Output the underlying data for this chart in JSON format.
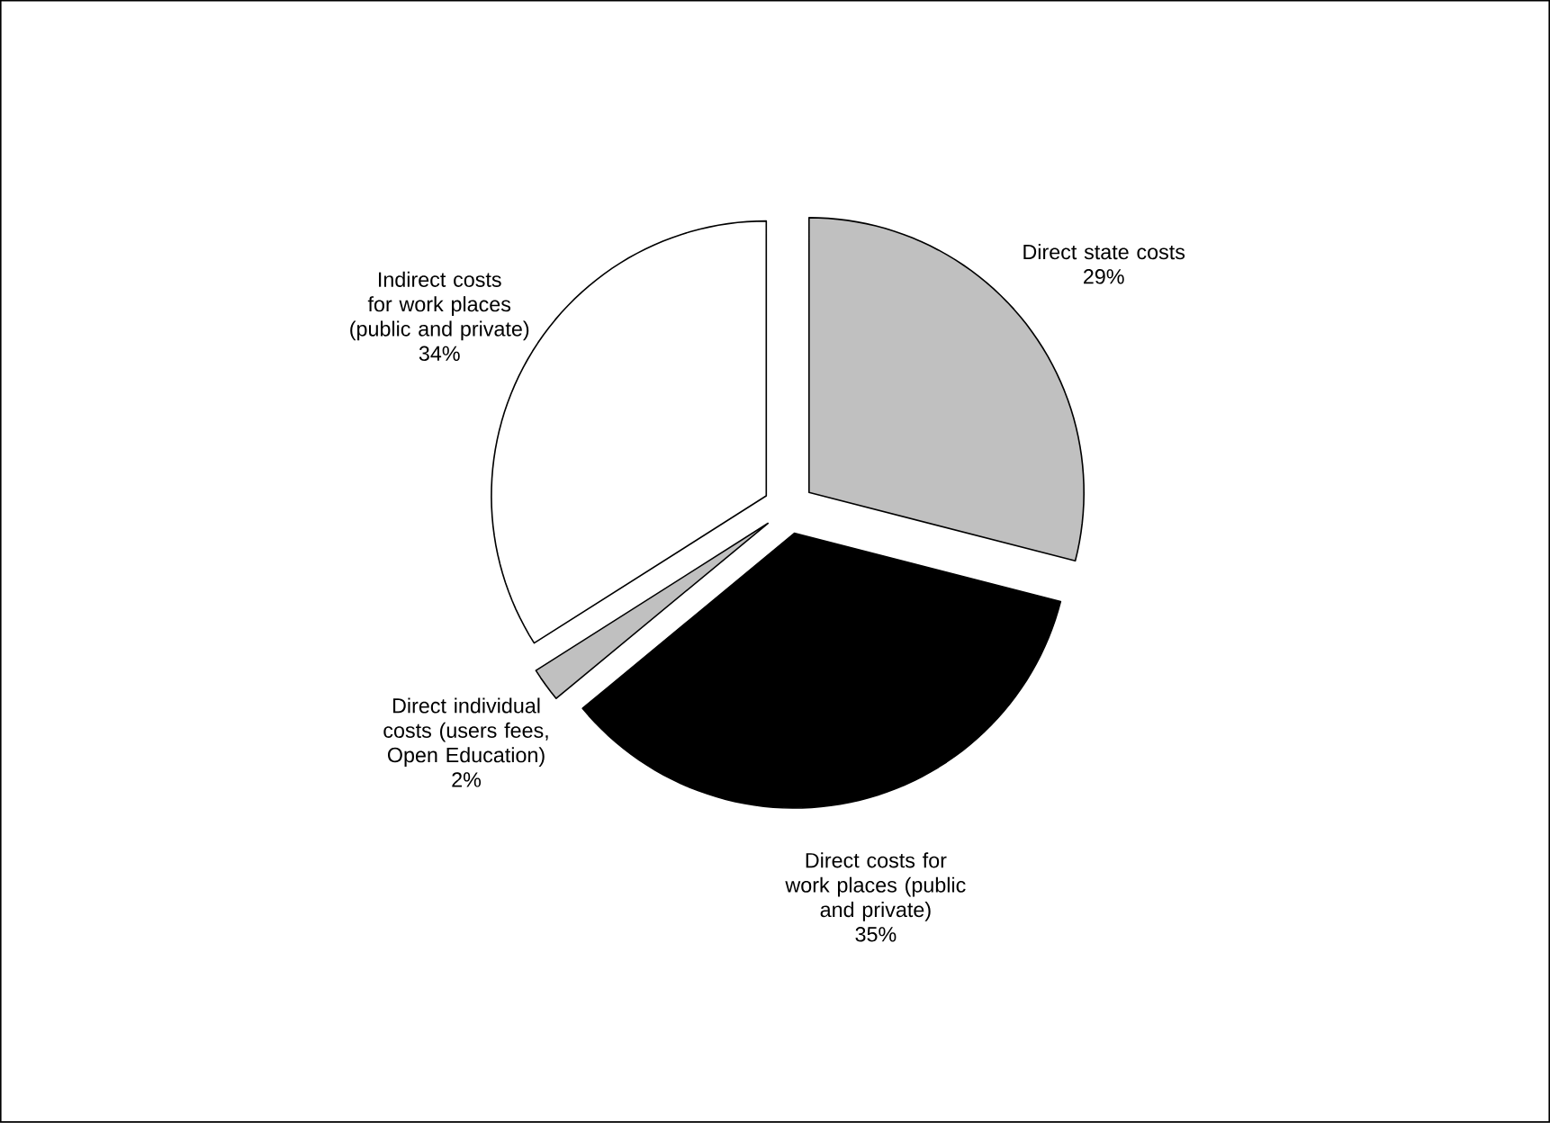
{
  "chart_data": {
    "type": "pie",
    "categories": [
      "Direct state costs",
      "Direct costs for work places (public and private)",
      "Direct individual costs (users fees, Open Education)",
      "Indirect costs for work places (public and private)"
    ],
    "values": [
      29,
      35,
      2,
      34
    ],
    "value_labels": [
      "29%",
      "35%",
      "2%",
      "34%"
    ],
    "colors": [
      "#c0c0c0",
      "#000000",
      "#c0c0c0",
      "#ffffff"
    ]
  }
}
